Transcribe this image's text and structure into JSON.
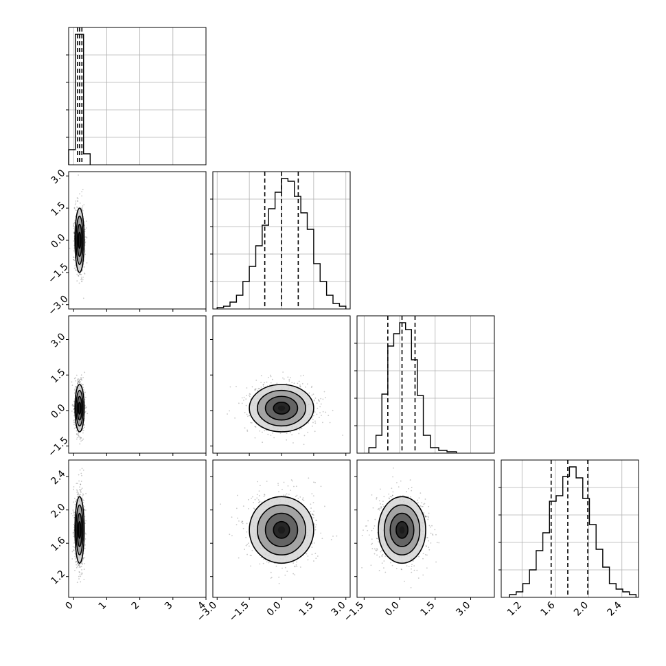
{
  "chart_data": {
    "type": "corner",
    "n_params": 4,
    "grid": true,
    "params": [
      {
        "range": [
          -0.15,
          4.0
        ],
        "ticks": [
          0,
          1,
          2,
          3,
          4
        ],
        "tick_labels": [
          "0",
          "1",
          "2",
          "3",
          "4"
        ],
        "quantiles": [
          0.12,
          0.18,
          0.25
        ],
        "hist": {
          "bins": [
            -0.15,
            0.05,
            0.3,
            0.5
          ],
          "values": [
            0.11,
            0.95,
            0.08
          ]
        }
      },
      {
        "range": [
          -3.2,
          3.2
        ],
        "ticks": [
          -3.0,
          -1.5,
          0.0,
          1.5,
          3.0
        ],
        "tick_labels": [
          "−3.0",
          "−1.5",
          "0.0",
          "1.5",
          "3.0"
        ],
        "quantiles": [
          -0.78,
          0.0,
          0.78
        ],
        "hist": {
          "bins": [
            -3.0,
            -2.7,
            -2.4,
            -2.1,
            -1.8,
            -1.5,
            -1.2,
            -0.9,
            -0.6,
            -0.3,
            0.0,
            0.3,
            0.6,
            0.9,
            1.2,
            1.5,
            1.8,
            2.1,
            2.4,
            2.7,
            3.0
          ],
          "values": [
            0.01,
            0.02,
            0.05,
            0.1,
            0.2,
            0.31,
            0.46,
            0.61,
            0.73,
            0.85,
            0.95,
            0.93,
            0.82,
            0.7,
            0.58,
            0.33,
            0.2,
            0.1,
            0.04,
            0.02
          ]
        }
      },
      {
        "range": [
          -1.8,
          4.0
        ],
        "ticks": [
          -1.5,
          0.0,
          1.5,
          3.0
        ],
        "tick_labels": [
          "−1.5",
          "0.0",
          "1.5",
          "3.0"
        ],
        "quantiles": [
          -0.5,
          0.1,
          0.65
        ],
        "hist": {
          "bins": [
            -1.3,
            -1.0,
            -0.75,
            -0.5,
            -0.25,
            0.0,
            0.25,
            0.5,
            0.75,
            1.0,
            1.3,
            1.65,
            2.0,
            2.4
          ],
          "values": [
            0.04,
            0.13,
            0.43,
            0.78,
            0.87,
            0.95,
            0.9,
            0.68,
            0.42,
            0.13,
            0.04,
            0.02,
            0.01
          ]
        }
      },
      {
        "range": [
          0.95,
          2.6
        ],
        "ticks": [
          1.2,
          1.6,
          2.0,
          2.4
        ],
        "tick_labels": [
          "1.2",
          "1.6",
          "2.0",
          "2.4"
        ],
        "quantiles": [
          1.55,
          1.75,
          1.99
        ],
        "hist": {
          "bins": [
            1.05,
            1.13,
            1.21,
            1.29,
            1.37,
            1.45,
            1.53,
            1.61,
            1.69,
            1.77,
            1.85,
            1.93,
            2.01,
            2.09,
            2.17,
            2.25,
            2.33,
            2.41,
            2.49,
            2.57
          ],
          "values": [
            0.02,
            0.04,
            0.1,
            0.2,
            0.34,
            0.47,
            0.7,
            0.74,
            0.88,
            0.95,
            0.87,
            0.72,
            0.53,
            0.35,
            0.22,
            0.1,
            0.06,
            0.04,
            0.02
          ]
        }
      }
    ],
    "pairs": [
      {
        "row": 1,
        "col": 0,
        "center": [
          0.18,
          0.0
        ],
        "spread": [
          0.07,
          0.75
        ]
      },
      {
        "row": 2,
        "col": 0,
        "center": [
          0.18,
          0.1
        ],
        "spread": [
          0.07,
          0.5
        ]
      },
      {
        "row": 2,
        "col": 1,
        "center": [
          0.0,
          0.1
        ],
        "spread": [
          0.75,
          0.5
        ]
      },
      {
        "row": 3,
        "col": 0,
        "center": [
          0.18,
          1.76
        ],
        "spread": [
          0.07,
          0.2
        ]
      },
      {
        "row": 3,
        "col": 1,
        "center": [
          0.0,
          1.76
        ],
        "spread": [
          0.75,
          0.2
        ]
      },
      {
        "row": 3,
        "col": 2,
        "center": [
          0.1,
          1.76
        ],
        "spread": [
          0.5,
          0.2
        ]
      }
    ],
    "hist_grid_fractions": [
      0.2,
      0.4,
      0.6,
      0.8
    ],
    "colors": {
      "line": "#000000",
      "grid": "#b0b0b0",
      "scatter": "#000000",
      "density_levels": [
        "#ffffff",
        "#d6d6d6",
        "#9a9a9a",
        "#595959",
        "#1c1c1c"
      ]
    }
  }
}
